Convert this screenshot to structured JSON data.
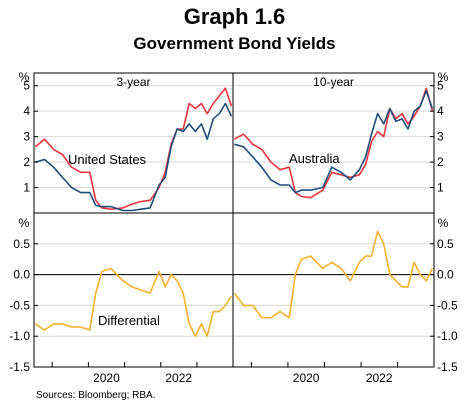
{
  "page": {
    "graph_label": "Graph 1.6",
    "source": "Sources: Bloomberg; RBA."
  },
  "colors": {
    "us": "#e8363f",
    "australia": "#1f4e79",
    "differential": "#f7b12a",
    "axis": "#000000",
    "grid": "#d9d9d9"
  },
  "chart_data": {
    "type": "line",
    "title": "Government Bond Yields",
    "panels": [
      {
        "name": "3-year",
        "x_start": "2018-07-01",
        "x_end": "2023-12-31",
        "series": [
          {
            "name": "United States",
            "role": "us",
            "x": [
              "2018-07",
              "2018-10",
              "2019-01",
              "2019-04",
              "2019-07",
              "2019-10",
              "2020-01",
              "2020-03",
              "2020-05",
              "2020-08",
              "2020-12",
              "2021-03",
              "2021-06",
              "2021-09",
              "2021-12",
              "2022-02",
              "2022-04",
              "2022-06",
              "2022-08",
              "2022-10",
              "2022-12",
              "2023-02",
              "2023-04",
              "2023-06",
              "2023-08",
              "2023-10",
              "2023-12"
            ],
            "values": [
              2.6,
              2.9,
              2.5,
              2.3,
              1.8,
              1.6,
              1.6,
              0.5,
              0.2,
              0.15,
              0.2,
              0.35,
              0.45,
              0.5,
              1.0,
              1.6,
              2.7,
              3.3,
              3.3,
              4.3,
              4.1,
              4.3,
              3.9,
              4.3,
              4.6,
              4.9,
              4.2
            ]
          },
          {
            "name": "Australia",
            "role": "australia",
            "x": [
              "2018-07",
              "2018-10",
              "2019-01",
              "2019-04",
              "2019-07",
              "2019-10",
              "2020-01",
              "2020-03",
              "2020-05",
              "2020-08",
              "2020-12",
              "2021-03",
              "2021-06",
              "2021-09",
              "2021-12",
              "2022-02",
              "2022-04",
              "2022-06",
              "2022-08",
              "2022-10",
              "2022-12",
              "2023-02",
              "2023-04",
              "2023-06",
              "2023-08",
              "2023-10",
              "2023-12"
            ],
            "values": [
              2.0,
              2.1,
              1.8,
              1.4,
              1.0,
              0.8,
              0.8,
              0.3,
              0.25,
              0.25,
              0.1,
              0.1,
              0.15,
              0.2,
              1.1,
              1.4,
              2.6,
              3.3,
              3.2,
              3.5,
              3.2,
              3.5,
              2.9,
              3.7,
              3.9,
              4.3,
              3.8
            ]
          }
        ],
        "labels": [
          {
            "text": "United States",
            "role": "us"
          }
        ]
      },
      {
        "name": "10-year",
        "x_start": "2018-07-01",
        "x_end": "2023-12-31",
        "series": [
          {
            "name": "United States",
            "role": "us",
            "x": [
              "2018-07",
              "2018-10",
              "2019-01",
              "2019-04",
              "2019-07",
              "2019-10",
              "2020-01",
              "2020-03",
              "2020-05",
              "2020-08",
              "2020-12",
              "2021-03",
              "2021-06",
              "2021-09",
              "2021-12",
              "2022-02",
              "2022-04",
              "2022-06",
              "2022-08",
              "2022-10",
              "2022-12",
              "2023-02",
              "2023-04",
              "2023-06",
              "2023-08",
              "2023-10",
              "2023-12"
            ],
            "values": [
              2.9,
              3.1,
              2.7,
              2.5,
              2.0,
              1.7,
              1.8,
              0.8,
              0.65,
              0.6,
              0.9,
              1.6,
              1.5,
              1.4,
              1.5,
              1.9,
              2.8,
              3.2,
              3.0,
              4.1,
              3.7,
              3.9,
              3.5,
              3.8,
              4.2,
              4.9,
              4.0
            ]
          },
          {
            "name": "Australia",
            "role": "australia",
            "x": [
              "2018-07",
              "2018-10",
              "2019-01",
              "2019-04",
              "2019-07",
              "2019-10",
              "2020-01",
              "2020-03",
              "2020-05",
              "2020-08",
              "2020-12",
              "2021-03",
              "2021-06",
              "2021-09",
              "2021-12",
              "2022-02",
              "2022-04",
              "2022-06",
              "2022-08",
              "2022-10",
              "2022-12",
              "2023-02",
              "2023-04",
              "2023-06",
              "2023-08",
              "2023-10",
              "2023-12"
            ],
            "values": [
              2.7,
              2.6,
              2.2,
              1.8,
              1.3,
              1.1,
              1.1,
              0.8,
              0.9,
              0.9,
              1.0,
              1.8,
              1.6,
              1.3,
              1.7,
              2.2,
              3.1,
              3.9,
              3.5,
              4.1,
              3.6,
              3.7,
              3.3,
              4.0,
              4.2,
              4.8,
              4.1
            ]
          }
        ],
        "labels": [
          {
            "text": "Australia",
            "role": "australia"
          }
        ]
      },
      {
        "name": "",
        "x_start": "2018-07-01",
        "x_end": "2023-12-31",
        "series": [
          {
            "name": "Differential",
            "role": "differential",
            "x": [
              "2018-07",
              "2018-10",
              "2019-01",
              "2019-04",
              "2019-07",
              "2019-10",
              "2020-01",
              "2020-03",
              "2020-05",
              "2020-08",
              "2020-12",
              "2021-03",
              "2021-06",
              "2021-09",
              "2021-12",
              "2022-02",
              "2022-04",
              "2022-06",
              "2022-08",
              "2022-10",
              "2022-12",
              "2023-02",
              "2023-04",
              "2023-06",
              "2023-08",
              "2023-10",
              "2023-12"
            ],
            "values": [
              -0.8,
              -0.9,
              -0.8,
              -0.8,
              -0.85,
              -0.85,
              -0.9,
              -0.3,
              0.05,
              0.1,
              -0.1,
              -0.2,
              -0.25,
              -0.3,
              0.05,
              -0.2,
              0.0,
              -0.1,
              -0.3,
              -0.8,
              -1.0,
              -0.8,
              -1.0,
              -0.6,
              -0.6,
              -0.5,
              -0.35
            ]
          }
        ],
        "labels": [
          {
            "text": "Differential",
            "role": "differential"
          }
        ]
      },
      {
        "name": "",
        "x_start": "2018-07-01",
        "x_end": "2023-12-31",
        "series": [
          {
            "name": "Differential",
            "role": "differential",
            "x": [
              "2018-07",
              "2018-10",
              "2019-01",
              "2019-04",
              "2019-07",
              "2019-10",
              "2020-01",
              "2020-03",
              "2020-05",
              "2020-08",
              "2020-12",
              "2021-03",
              "2021-06",
              "2021-09",
              "2021-12",
              "2022-02",
              "2022-04",
              "2022-06",
              "2022-08",
              "2022-10",
              "2022-12",
              "2023-02",
              "2023-04",
              "2023-06",
              "2023-08",
              "2023-10",
              "2023-12"
            ],
            "values": [
              -0.3,
              -0.5,
              -0.5,
              -0.7,
              -0.7,
              -0.6,
              -0.7,
              0.0,
              0.25,
              0.3,
              0.1,
              0.2,
              0.1,
              -0.1,
              0.2,
              0.3,
              0.3,
              0.7,
              0.5,
              0.0,
              -0.1,
              -0.2,
              -0.2,
              0.2,
              0.0,
              -0.1,
              0.1
            ]
          }
        ],
        "labels": []
      }
    ],
    "top_y_axis": {
      "unit": "%",
      "ylim": [
        0,
        5.5
      ],
      "ticks": [
        1,
        2,
        3,
        4,
        5
      ]
    },
    "bottom_y_axis": {
      "unit": "%",
      "ylim": [
        -1.5,
        1.0
      ],
      "ticks": [
        0.5,
        0.0,
        -0.5,
        -1.0,
        -1.5
      ],
      "tick_labels": [
        "0.5",
        "0.0",
        "-0.5",
        "-1.0",
        "-1.5"
      ]
    },
    "x_axis": {
      "ticks": [
        {
          "label": "2020",
          "date": "2020-01-01"
        },
        {
          "label": "2022",
          "date": "2022-01-01"
        }
      ]
    },
    "grid": true
  }
}
